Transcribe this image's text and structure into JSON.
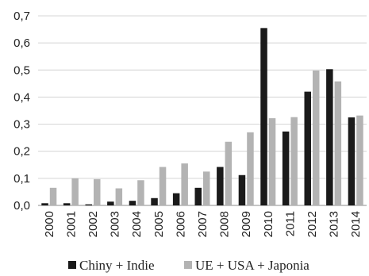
{
  "chart_data": {
    "type": "bar",
    "categories": [
      "2000",
      "2001",
      "2002",
      "2003",
      "2004",
      "2005",
      "2006",
      "2007",
      "2008",
      "2009",
      "2010",
      "2011",
      "2012",
      "2013",
      "2014"
    ],
    "series": [
      {
        "name": "Chiny + Indie",
        "color": "#1a1a1a",
        "values": [
          0.008,
          0.008,
          0.004,
          0.014,
          0.017,
          0.027,
          0.045,
          0.065,
          0.142,
          0.112,
          0.655,
          0.273,
          0.42,
          0.503,
          0.325
        ]
      },
      {
        "name": "UE + USA + Japonia",
        "color": "#b3b3b3",
        "values": [
          0.065,
          0.1,
          0.097,
          0.063,
          0.093,
          0.142,
          0.155,
          0.125,
          0.235,
          0.27,
          0.322,
          0.326,
          0.498,
          0.458,
          0.332
        ]
      }
    ],
    "y_ticks": [
      "0,0",
      "0,1",
      "0,2",
      "0,3",
      "0,4",
      "0,5",
      "0,6",
      "0,7"
    ],
    "ylim": [
      0,
      0.7
    ],
    "grid": true,
    "legend": "bottom"
  }
}
